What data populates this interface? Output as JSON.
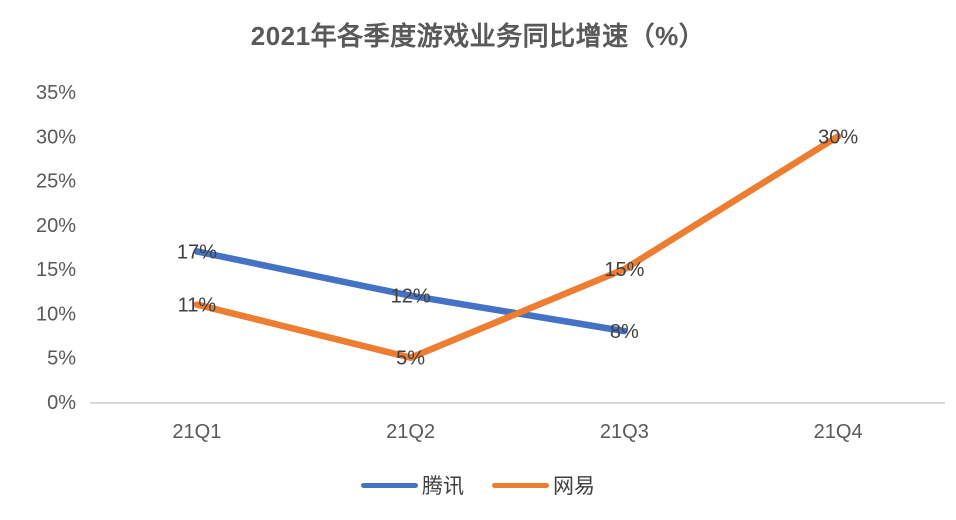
{
  "chart": {
    "title": "2021年各季度游戏业务同比增速（%）"
  },
  "chart_data": {
    "type": "line",
    "title": "2021年各季度游戏业务同比增速（%）",
    "categories": [
      "21Q1",
      "21Q2",
      "21Q3",
      "21Q4"
    ],
    "series": [
      {
        "name": "腾讯",
        "color": "#4472C4",
        "values": [
          17,
          12,
          8,
          null
        ],
        "labels": [
          "17%",
          "12%",
          "8%",
          ""
        ]
      },
      {
        "name": "网易",
        "color": "#ED7D31",
        "values": [
          11,
          5,
          15,
          30
        ],
        "labels": [
          "11%",
          "5%",
          "15%",
          "30%"
        ]
      }
    ],
    "xlabel": "",
    "ylabel": "",
    "ylim": [
      0,
      35
    ],
    "ytick_step": 5,
    "ytick_labels": [
      "0%",
      "5%",
      "10%",
      "15%",
      "20%",
      "25%",
      "30%",
      "35%"
    ],
    "grid": false,
    "legend_position": "bottom"
  },
  "colors": {
    "title_text": "#595959",
    "tick_text": "#595959",
    "data_label_text": "#404040",
    "axis_line": "#D9D9D9",
    "background": "#FFFFFF"
  }
}
